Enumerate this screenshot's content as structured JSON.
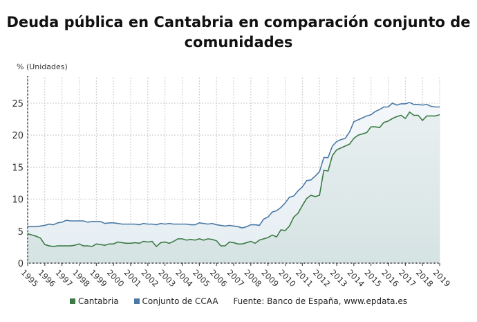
{
  "chart_data": {
    "type": "area",
    "title": "Deuda pública en Cantabria en comparación conjunto de comunidades",
    "ylabel": "% (Unidades)",
    "xlabel": "",
    "ylim": [
      0,
      29
    ],
    "yticks": [
      0,
      5,
      10,
      15,
      20,
      25
    ],
    "xlim": [
      1995,
      2019
    ],
    "xticks": [
      "1995",
      "1996",
      "1997",
      "1998",
      "1999",
      "2000",
      "2001",
      "2002",
      "2003",
      "2004",
      "2005",
      "2006",
      "2007",
      "2008",
      "2009",
      "2010",
      "2011",
      "2012",
      "2013",
      "2014",
      "2015",
      "2016",
      "2017",
      "2018",
      "2019"
    ],
    "x_frequency": "quarterly",
    "grid": true,
    "legend_position": "bottom",
    "series": [
      {
        "name": "Cantabria",
        "color": "#3b7a45",
        "values": [
          4.6,
          4.4,
          4.2,
          3.9,
          2.9,
          2.7,
          2.6,
          2.7,
          2.7,
          2.7,
          2.7,
          2.8,
          3.0,
          2.7,
          2.7,
          2.6,
          3.0,
          2.9,
          2.8,
          3.0,
          3.0,
          3.3,
          3.2,
          3.1,
          3.1,
          3.2,
          3.1,
          3.4,
          3.3,
          3.4,
          2.6,
          3.2,
          3.3,
          3.1,
          3.4,
          3.8,
          3.8,
          3.6,
          3.7,
          3.6,
          3.8,
          3.6,
          3.8,
          3.7,
          3.5,
          2.7,
          2.7,
          3.3,
          3.2,
          3.0,
          3.0,
          3.2,
          3.4,
          3.1,
          3.6,
          3.8,
          4.0,
          4.4,
          4.1,
          5.2,
          5.1,
          5.8,
          7.2,
          7.8,
          9.0,
          10.1,
          10.6,
          10.4,
          10.6,
          14.5,
          14.4,
          16.8,
          17.7,
          18.0,
          18.3,
          18.6,
          19.5,
          20.0,
          20.2,
          20.4,
          21.3,
          21.3,
          21.2,
          22.0,
          22.2,
          22.6,
          22.9,
          23.1,
          22.6,
          23.6,
          23.1,
          23.1,
          22.3,
          23.0,
          23.0,
          23.0,
          23.2
        ]
      },
      {
        "name": "Conjunto de CCAA",
        "color": "#4a79a5",
        "values": [
          5.7,
          5.7,
          5.7,
          5.8,
          5.9,
          6.1,
          6.0,
          6.3,
          6.4,
          6.7,
          6.6,
          6.6,
          6.6,
          6.6,
          6.4,
          6.5,
          6.5,
          6.5,
          6.2,
          6.3,
          6.3,
          6.2,
          6.1,
          6.1,
          6.1,
          6.1,
          6.0,
          6.2,
          6.1,
          6.1,
          6.0,
          6.2,
          6.1,
          6.2,
          6.1,
          6.1,
          6.1,
          6.1,
          6.0,
          6.0,
          6.3,
          6.2,
          6.1,
          6.2,
          6.0,
          5.9,
          5.8,
          5.9,
          5.8,
          5.7,
          5.5,
          5.7,
          6.0,
          6.0,
          5.9,
          6.9,
          7.2,
          8.0,
          8.2,
          8.7,
          9.4,
          10.3,
          10.5,
          11.3,
          11.9,
          12.9,
          13.0,
          13.6,
          14.3,
          16.5,
          16.5,
          18.3,
          19.0,
          19.3,
          19.5,
          20.5,
          22.1,
          22.4,
          22.7,
          23.0,
          23.2,
          23.7,
          24.0,
          24.4,
          24.4,
          25.0,
          24.7,
          24.9,
          24.9,
          25.1,
          24.8,
          24.8,
          24.7,
          24.8,
          24.5,
          24.4,
          24.4
        ]
      }
    ],
    "source": "Fuente: Banco de España, www.epdata.es"
  }
}
